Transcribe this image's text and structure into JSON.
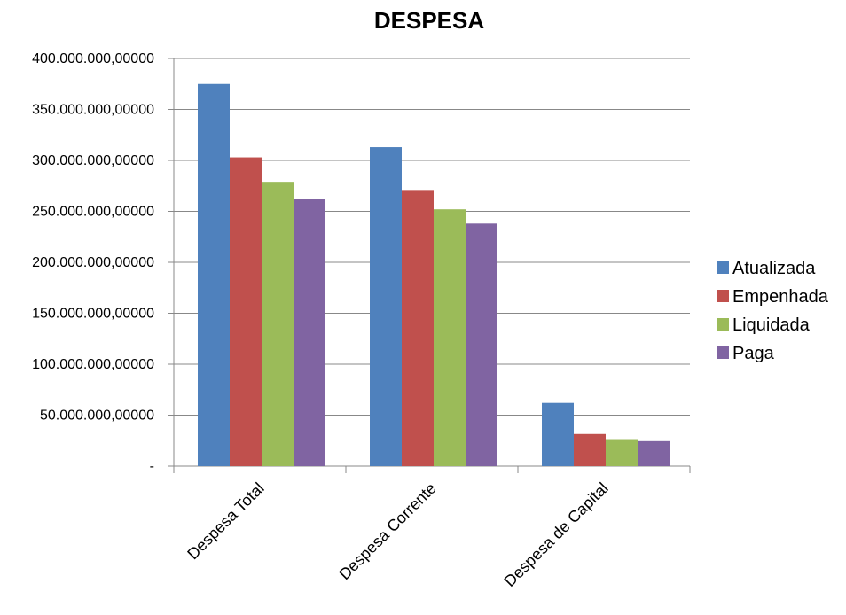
{
  "chart_data": {
    "type": "bar",
    "title": "DESPESA",
    "xlabel": "",
    "ylabel": "",
    "categories": [
      "Despesa Total",
      "Despesa Corrente",
      "Despesa de Capital"
    ],
    "series": [
      {
        "name": "Atualizada",
        "color": "#4f81bd",
        "values": [
          375000000,
          313000000,
          62000000
        ]
      },
      {
        "name": "Empenhada",
        "color": "#c0504d",
        "values": [
          303000000,
          271000000,
          31500000
        ]
      },
      {
        "name": "Liquidada",
        "color": "#9bbb59",
        "values": [
          279000000,
          252000000,
          26500000
        ]
      },
      {
        "name": "Paga",
        "color": "#8064a2",
        "values": [
          262000000,
          238000000,
          24500000
        ]
      }
    ],
    "ylim": [
      0,
      400000000
    ],
    "y_ticks": [
      0,
      50000000,
      100000000,
      150000000,
      200000000,
      250000000,
      300000000,
      350000000,
      400000000
    ],
    "y_tick_labels": [
      "-",
      "50.000.000,00000",
      "100.000.000,00000",
      "150.000.000,00000",
      "200.000.000,00000",
      "250.000.000,00000",
      "300.000.000,00000",
      "350.000.000,00000",
      "400.000.000,00000"
    ],
    "grid": true,
    "legend_position": "right",
    "gridline_color": "#888888"
  }
}
